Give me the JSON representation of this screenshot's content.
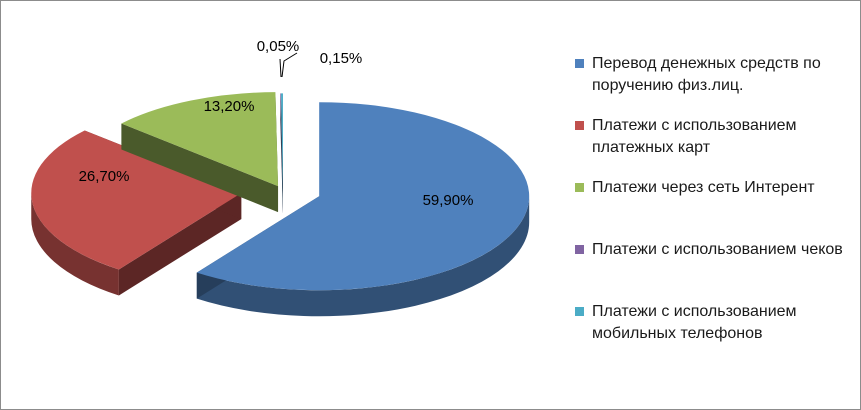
{
  "chart_data": {
    "type": "pie",
    "style": "3d-exploded",
    "legend_position": "right",
    "categories": [
      "Перевод денежных средств по поручению физ.лиц.",
      "Платежи с использованием платежных карт",
      "Платежи через сеть Интерент",
      "Платежи с использованием чеков",
      "Платежи с использованием мобильных телефонов"
    ],
    "values": [
      59.9,
      26.7,
      13.2,
      0.05,
      0.15
    ],
    "labels": [
      "59,90%",
      "26,70%",
      "13,20%",
      "0,05%",
      "0,15%"
    ],
    "colors": [
      "#4F81BD",
      "#C0504D",
      "#9BBB59",
      "#8064A2",
      "#4BACC6"
    ]
  }
}
